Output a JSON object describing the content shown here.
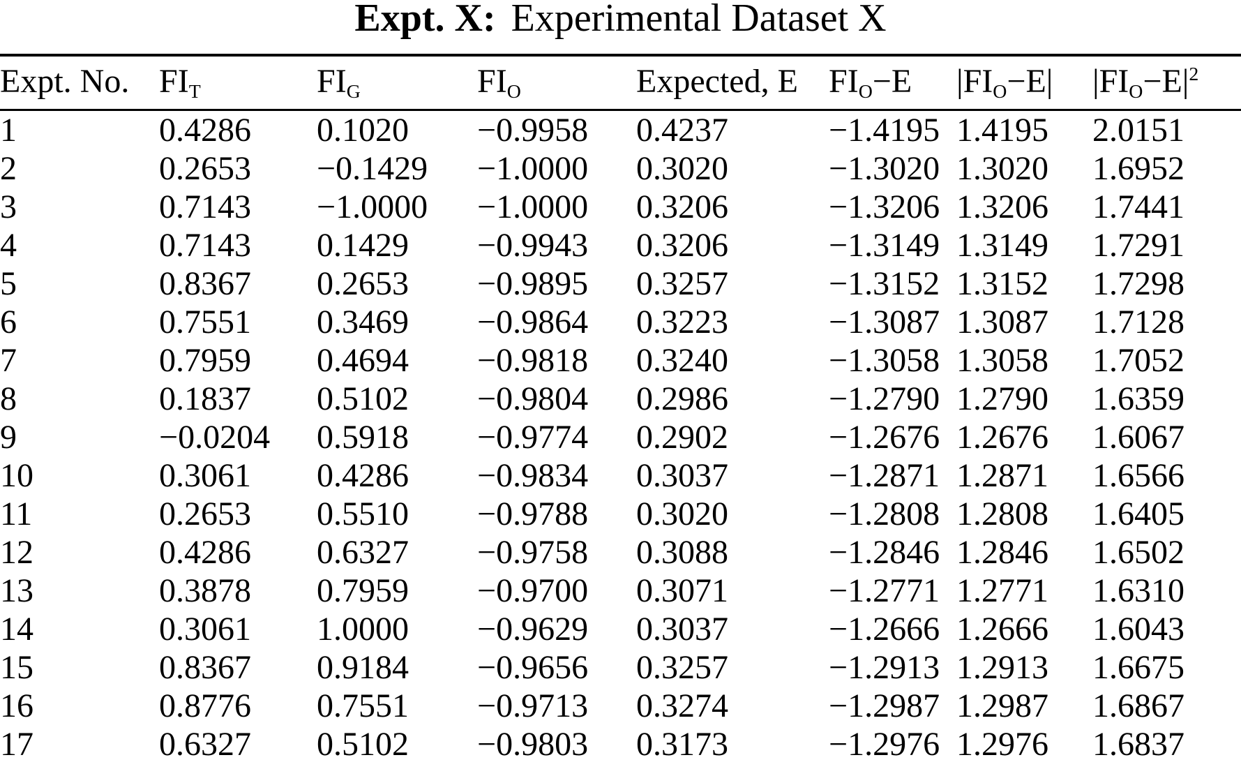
{
  "page": {
    "title_bold": "Expt. X:",
    "title_rest": "Experimental Dataset X"
  },
  "table": {
    "columns": [
      {
        "key": "expt-no",
        "pre": "Expt. No.",
        "sub": "",
        "post": "",
        "sup": ""
      },
      {
        "key": "fi-t",
        "pre": "FI",
        "sub": "T",
        "post": "",
        "sup": ""
      },
      {
        "key": "fi-g",
        "pre": "FI",
        "sub": "G",
        "post": "",
        "sup": ""
      },
      {
        "key": "fi-o",
        "pre": "FI",
        "sub": "O",
        "post": "",
        "sup": ""
      },
      {
        "key": "expected-e",
        "pre": "Expected, E",
        "sub": "",
        "post": "",
        "sup": ""
      },
      {
        "key": "fio-minus-e",
        "pre": "FI",
        "sub": "O",
        "post": "−E",
        "sup": ""
      },
      {
        "key": "abs-fio-minus-e",
        "pre": "|FI",
        "sub": "O",
        "post": "−E|",
        "sup": ""
      },
      {
        "key": "abs-fio-minus-e-sq",
        "pre": "|FI",
        "sub": "O",
        "post": "−E|",
        "sup": "2"
      }
    ],
    "rows": [
      [
        "1",
        "0.4286",
        "0.1020",
        "−0.9958",
        "0.4237",
        "−1.4195",
        "1.4195",
        "2.0151"
      ],
      [
        "2",
        "0.2653",
        "−0.1429",
        "−1.0000",
        "0.3020",
        "−1.3020",
        "1.3020",
        "1.6952"
      ],
      [
        "3",
        "0.7143",
        "−1.0000",
        "−1.0000",
        "0.3206",
        "−1.3206",
        "1.3206",
        "1.7441"
      ],
      [
        "4",
        "0.7143",
        "0.1429",
        "−0.9943",
        "0.3206",
        "−1.3149",
        "1.3149",
        "1.7291"
      ],
      [
        "5",
        "0.8367",
        "0.2653",
        "−0.9895",
        "0.3257",
        "−1.3152",
        "1.3152",
        "1.7298"
      ],
      [
        "6",
        "0.7551",
        "0.3469",
        "−0.9864",
        "0.3223",
        "−1.3087",
        "1.3087",
        "1.7128"
      ],
      [
        "7",
        "0.7959",
        "0.4694",
        "−0.9818",
        "0.3240",
        "−1.3058",
        "1.3058",
        "1.7052"
      ],
      [
        "8",
        "0.1837",
        "0.5102",
        "−0.9804",
        "0.2986",
        "−1.2790",
        "1.2790",
        "1.6359"
      ],
      [
        "9",
        "−0.0204",
        "0.5918",
        "−0.9774",
        "0.2902",
        "−1.2676",
        "1.2676",
        "1.6067"
      ],
      [
        "10",
        "0.3061",
        "0.4286",
        "−0.9834",
        "0.3037",
        "−1.2871",
        "1.2871",
        "1.6566"
      ],
      [
        "11",
        "0.2653",
        "0.5510",
        "−0.9788",
        "0.3020",
        "−1.2808",
        "1.2808",
        "1.6405"
      ],
      [
        "12",
        "0.4286",
        "0.6327",
        "−0.9758",
        "0.3088",
        "−1.2846",
        "1.2846",
        "1.6502"
      ],
      [
        "13",
        "0.3878",
        "0.7959",
        "−0.9700",
        "0.3071",
        "−1.2771",
        "1.2771",
        "1.6310"
      ],
      [
        "14",
        "0.3061",
        "1.0000",
        "−0.9629",
        "0.3037",
        "−1.2666",
        "1.2666",
        "1.6043"
      ],
      [
        "15",
        "0.8367",
        "0.9184",
        "−0.9656",
        "0.3257",
        "−1.2913",
        "1.2913",
        "1.6675"
      ],
      [
        "16",
        "0.8776",
        "0.7551",
        "−0.9713",
        "0.3274",
        "−1.2987",
        "1.2987",
        "1.6867"
      ],
      [
        "17",
        "0.6327",
        "0.5102",
        "−0.9803",
        "0.3173",
        "−1.2976",
        "1.2976",
        "1.6837"
      ]
    ]
  }
}
